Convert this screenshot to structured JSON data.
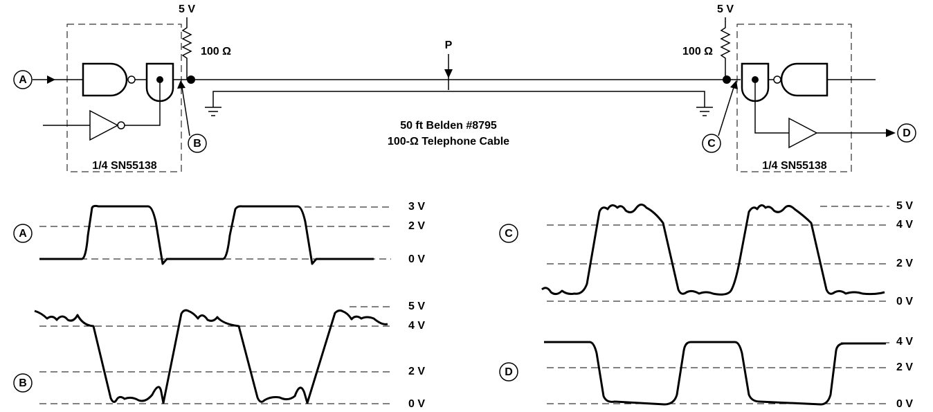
{
  "circuit": {
    "supply_left": "5 V",
    "supply_right": "5 V",
    "resistor_left": "100 Ω",
    "resistor_right": "100 Ω",
    "probe": "P",
    "cable_line1": "50 ft Belden #8795",
    "cable_line2": "100-Ω Telephone Cable",
    "chip_left": "1/4 SN55138",
    "chip_right": "1/4 SN55138",
    "nodes": [
      "A",
      "B",
      "C",
      "D"
    ]
  },
  "waveforms": [
    {
      "node": "A",
      "levels": [
        "3 V",
        "2 V",
        "0 V"
      ]
    },
    {
      "node": "B",
      "levels": [
        "5 V",
        "4 V",
        "2 V",
        "0 V"
      ]
    },
    {
      "node": "C",
      "levels": [
        "5 V",
        "4 V",
        "2 V",
        "0 V"
      ]
    },
    {
      "node": "D",
      "levels": [
        "4 V",
        "2 V",
        "0 V"
      ]
    }
  ]
}
